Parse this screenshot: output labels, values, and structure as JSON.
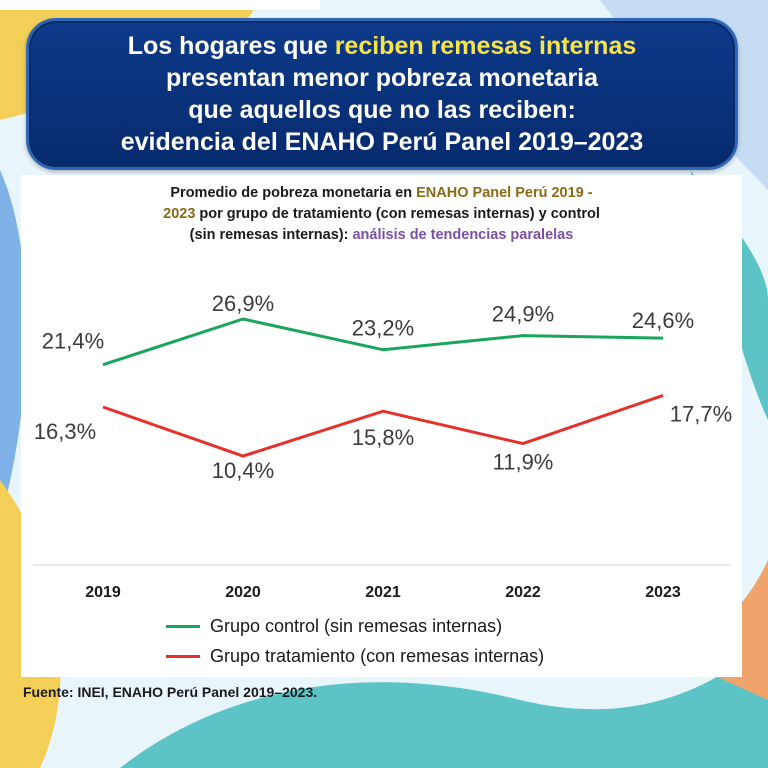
{
  "header": {
    "title_part1": "Los hogares que ",
    "title_highlight": "reciben remesas internas",
    "title_line2": "presentan menor pobreza monetaria",
    "title_line3": "que aquellos que no las reciben:",
    "title_line4": "evidencia del ENAHO Perú Panel 2019–2023"
  },
  "subtitle": {
    "part1": "Promedio de pobreza monetaria en ",
    "gold1": "ENAHO Panel Perú 2019 -",
    "gold2": "2023",
    "part2": " por grupo de tratamiento (con remesas internas) y control",
    "part3": "(sin remesas internas): ",
    "purple": "análisis de tendencias paralelas"
  },
  "source": "Fuente: INEI, ENAHO Perú Panel 2019–2023.",
  "colors": {
    "control": "#1aa65a",
    "treatment": "#e8302a",
    "banner": "#0e3a8a",
    "highlight": "#f6e34a"
  },
  "chart_data": {
    "type": "line",
    "title": "Promedio de pobreza monetaria en ENAHO Panel Perú 2019 - 2023 por grupo de tratamiento (con remesas internas) y control (sin remesas internas): análisis de tendencias paralelas",
    "categories": [
      "2019",
      "2020",
      "2021",
      "2022",
      "2023"
    ],
    "series": [
      {
        "name": "Grupo control (sin remesas internas)",
        "values": [
          21.4,
          26.9,
          23.2,
          24.9,
          24.6
        ],
        "labels": [
          "21,4%",
          "26,9%",
          "23,2%",
          "24,9%",
          "24,6%"
        ],
        "color": "#1aa65a"
      },
      {
        "name": "Grupo tratamiento (con remesas internas)",
        "values": [
          16.3,
          10.4,
          15.8,
          11.9,
          17.7
        ],
        "labels": [
          "16,3%",
          "10,4%",
          "15,8%",
          "11,9%",
          "17,7%"
        ],
        "color": "#e8302a"
      }
    ],
    "ylim": [
      0,
      35
    ],
    "grid": false,
    "legend": "bottom"
  }
}
